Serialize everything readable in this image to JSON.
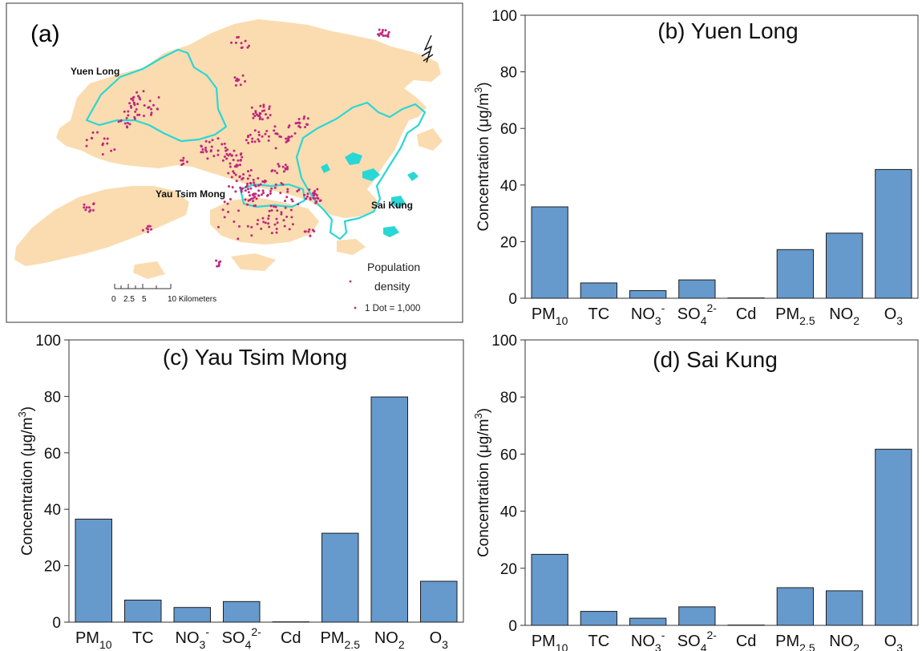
{
  "map": {
    "panel_label": "(a)",
    "regions": [
      "Yuen Long",
      "Yau Tsim Mong",
      "Sai Kung"
    ],
    "legend_title_1": "Population",
    "legend_title_2": "density",
    "legend_dot": "1 Dot = 1,000",
    "scale_labels": [
      "0",
      "2.5",
      "5",
      "10 Kilometers"
    ],
    "north_arrow_label": "N",
    "colors": {
      "land": "#fadcb0",
      "outline": "#29d7d5",
      "dots": "#c0287c"
    }
  },
  "chart_data": [
    {
      "type": "bar",
      "title": "(b) Yuen Long",
      "ylabel": "Concentration (μg/m3)",
      "ylim": [
        0,
        100
      ],
      "yticks": [
        0,
        20,
        40,
        60,
        80,
        100
      ],
      "categories": [
        "PM10",
        "TC",
        "NO3-",
        "SO42-",
        "Cd",
        "PM2.5",
        "NO2",
        "O3"
      ],
      "values": [
        32.3,
        5.4,
        2.7,
        6.5,
        0.1,
        17.2,
        23,
        45.5
      ],
      "color": "#6699cc"
    },
    {
      "type": "bar",
      "title": "(c) Yau Tsim Mong",
      "ylabel": "Concentration (μg/m3)",
      "ylim": [
        0,
        100
      ],
      "yticks": [
        0,
        20,
        40,
        60,
        80,
        100
      ],
      "categories": [
        "PM10",
        "TC",
        "NO3-",
        "SO42-",
        "Cd",
        "PM2.5",
        "NO2",
        "O3"
      ],
      "values": [
        36.5,
        7.8,
        5.2,
        7.3,
        0.1,
        31.5,
        79.8,
        14.5
      ],
      "color": "#6699cc"
    },
    {
      "type": "bar",
      "title": "(d) Sai Kung",
      "ylabel": "Concentration (μg/m3)",
      "ylim": [
        0,
        100
      ],
      "yticks": [
        0,
        20,
        40,
        60,
        80,
        100
      ],
      "categories": [
        "PM10",
        "TC",
        "NO3-",
        "SO42-",
        "Cd",
        "PM2.5",
        "NO2",
        "O3"
      ],
      "values": [
        24.9,
        4.9,
        2.5,
        6.5,
        0.1,
        13.2,
        12.1,
        61.7
      ],
      "color": "#6699cc"
    }
  ]
}
